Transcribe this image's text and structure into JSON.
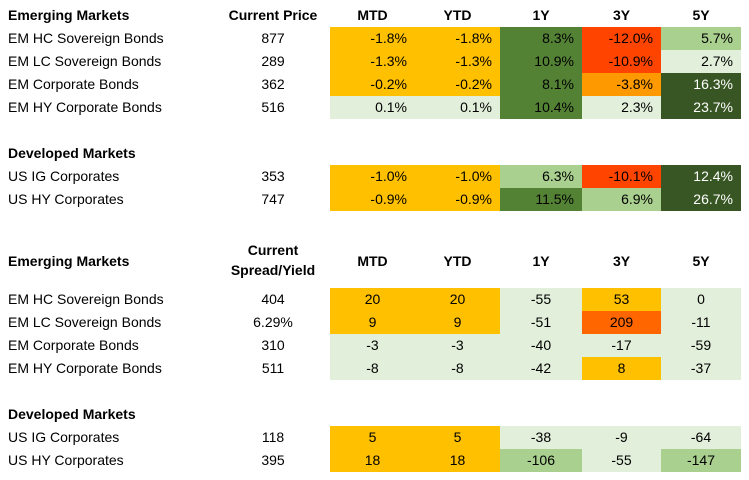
{
  "colors": {
    "orange_yellow": "#ffc000",
    "dark_orange": "#ff9900",
    "red": "#ff4400",
    "dark_green": "#548235",
    "very_dark_green": "#375623",
    "light_green": "#a9d08e",
    "pale_green": "#e2efda"
  },
  "price_table": {
    "section_title": "Emerging Markets",
    "current_header": "Current Price",
    "headers": {
      "mtd": "MTD",
      "ytd": "YTD",
      "y1": "1Y",
      "y3": "3Y",
      "y5": "5Y"
    },
    "rows": [
      {
        "name": "EM HC Sovereign Bonds",
        "current": "877",
        "mtd": "-1.8%",
        "ytd": "-1.8%",
        "y1": "8.3%",
        "y3": "-12.0%",
        "y5": "5.7%"
      },
      {
        "name": "EM LC Sovereign Bonds",
        "current": "289",
        "mtd": "-1.3%",
        "ytd": "-1.3%",
        "y1": "10.9%",
        "y3": "-10.9%",
        "y5": "2.7%"
      },
      {
        "name": "EM Corporate Bonds",
        "current": "362",
        "mtd": "-0.2%",
        "ytd": "-0.2%",
        "y1": "8.1%",
        "y3": "-3.8%",
        "y5": "16.3%"
      },
      {
        "name": "EM HY Corporate Bonds",
        "current": "516",
        "mtd": "0.1%",
        "ytd": "0.1%",
        "y1": "10.4%",
        "y3": "2.3%",
        "y5": "23.7%"
      }
    ],
    "dm_title": "Developed Markets",
    "dm_rows": [
      {
        "name": "US IG Corporates",
        "current": "353",
        "mtd": "-1.0%",
        "ytd": "-1.0%",
        "y1": "6.3%",
        "y3": "-10.1%",
        "y5": "12.4%"
      },
      {
        "name": "US HY Corporates",
        "current": "747",
        "mtd": "-0.9%",
        "ytd": "-0.9%",
        "y1": "11.5%",
        "y3": "6.9%",
        "y5": "26.7%"
      }
    ]
  },
  "spread_table": {
    "section_title": "Emerging Markets",
    "current_header_line1": "Current",
    "current_header_line2": "Spread/Yield",
    "headers": {
      "mtd": "MTD",
      "ytd": "YTD",
      "y1": "1Y",
      "y3": "3Y",
      "y5": "5Y"
    },
    "rows": [
      {
        "name": "EM HC Sovereign Bonds",
        "current": "404",
        "mtd": "20",
        "ytd": "20",
        "y1": "-55",
        "y3": "53",
        "y5": "0"
      },
      {
        "name": "EM LC Sovereign Bonds",
        "current": "6.29%",
        "mtd": "9",
        "ytd": "9",
        "y1": "-51",
        "y3": "209",
        "y5": "-11"
      },
      {
        "name": "EM Corporate Bonds",
        "current": "310",
        "mtd": "-3",
        "ytd": "-3",
        "y1": "-40",
        "y3": "-17",
        "y5": "-59"
      },
      {
        "name": "EM HY Corporate Bonds",
        "current": "511",
        "mtd": "-8",
        "ytd": "-8",
        "y1": "-42",
        "y3": "8",
        "y5": "-37"
      }
    ],
    "dm_title": "Developed Markets",
    "dm_rows": [
      {
        "name": "US IG Corporates",
        "current": "118",
        "mtd": "5",
        "ytd": "5",
        "y1": "-38",
        "y3": "-9",
        "y5": "-64"
      },
      {
        "name": "US HY Corporates",
        "current": "395",
        "mtd": "18",
        "ytd": "18",
        "y1": "-106",
        "y3": "-55",
        "y5": "-147"
      }
    ]
  }
}
